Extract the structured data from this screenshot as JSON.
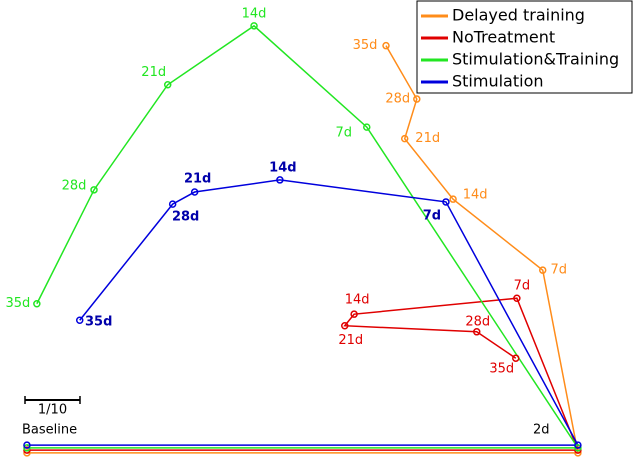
{
  "chart_data": {
    "type": "line",
    "xlim": [
      -0.049,
      1.104
    ],
    "ylim": [
      -0.009,
      0.827
    ],
    "legend": "upper right",
    "annotations": [
      "Baseline",
      "2d"
    ],
    "scale_bar": {
      "label": "1/10",
      "length": 0.1
    },
    "series": [
      {
        "name": "Delayed training",
        "color": "#ff8c1a",
        "x": [
          0,
          1.002,
          0.938,
          0.775,
          0.687,
          0.709,
          0.653
        ],
        "values": [
          0.004,
          0.004,
          0.336,
          0.465,
          0.575,
          0.647,
          0.744
        ],
        "labels": [
          null,
          null,
          "7d",
          "14d",
          "21d",
          "28d",
          "35d"
        ]
      },
      {
        "name": "NoTreatment",
        "color": "#e00000",
        "x": [
          0,
          1.002,
          0.891,
          0.595,
          0.578,
          0.818,
          0.889
        ],
        "values": [
          0.009,
          0.009,
          0.285,
          0.256,
          0.235,
          0.224,
          0.176
        ],
        "labels": [
          null,
          null,
          "7d",
          "14d",
          "21d",
          "28d",
          "35d"
        ]
      },
      {
        "name": "Stimulation&Training",
        "color": "#22e622",
        "x": [
          0,
          1.002,
          0.618,
          0.413,
          0.256,
          0.122,
          0.018
        ],
        "values": [
          0.013,
          0.013,
          0.596,
          0.78,
          0.673,
          0.482,
          0.275
        ],
        "labels": [
          null,
          null,
          "7d",
          "14d",
          "21d",
          "28d",
          "35d"
        ]
      },
      {
        "name": "Stimulation",
        "color": "#0000dd",
        "x": [
          0,
          1.002,
          0.762,
          0.46,
          0.305,
          0.265,
          0.096
        ],
        "values": [
          0.018,
          0.018,
          0.46,
          0.5,
          0.478,
          0.456,
          0.245
        ],
        "labels": [
          null,
          null,
          "7d",
          "14d",
          "21d",
          "28d",
          "35d"
        ]
      }
    ]
  }
}
